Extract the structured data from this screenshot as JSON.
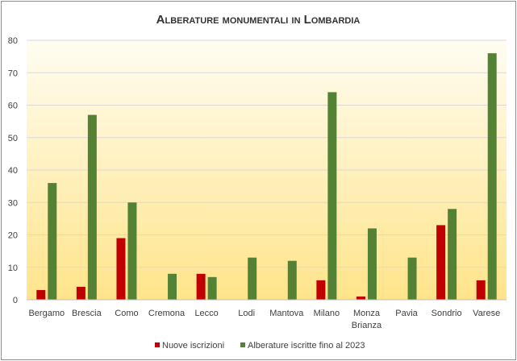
{
  "colors": {
    "nuove": "#c00000",
    "alberature": "#548235",
    "grid": "#d9d9d9",
    "plot_top": "#fffdf2",
    "plot_bottom": "#ffe48a"
  },
  "chart_data": {
    "type": "bar",
    "title": "Alberature monumentali in Lombardia",
    "xlabel": "",
    "ylabel": "",
    "ylim": [
      0,
      80
    ],
    "yticks": [
      0,
      10,
      20,
      30,
      40,
      50,
      60,
      70,
      80
    ],
    "grid": true,
    "legend_position": "bottom",
    "categories": [
      [
        "Bergamo"
      ],
      [
        "Brescia"
      ],
      [
        "Como"
      ],
      [
        "Cremona"
      ],
      [
        "Lecco"
      ],
      [
        "Lodi"
      ],
      [
        "Mantova"
      ],
      [
        "Milano"
      ],
      [
        "Monza",
        "Brianza"
      ],
      [
        "Pavia"
      ],
      [
        "Sondrio"
      ],
      [
        "Varese"
      ]
    ],
    "series": [
      {
        "name": "Nuove iscrizioni",
        "values": [
          3,
          4,
          19,
          0,
          8,
          0,
          0,
          6,
          1,
          0,
          23,
          6
        ]
      },
      {
        "name": "Alberature iscritte fino al 2023",
        "values": [
          36,
          57,
          30,
          8,
          7,
          13,
          12,
          64,
          22,
          13,
          28,
          76
        ]
      }
    ]
  }
}
